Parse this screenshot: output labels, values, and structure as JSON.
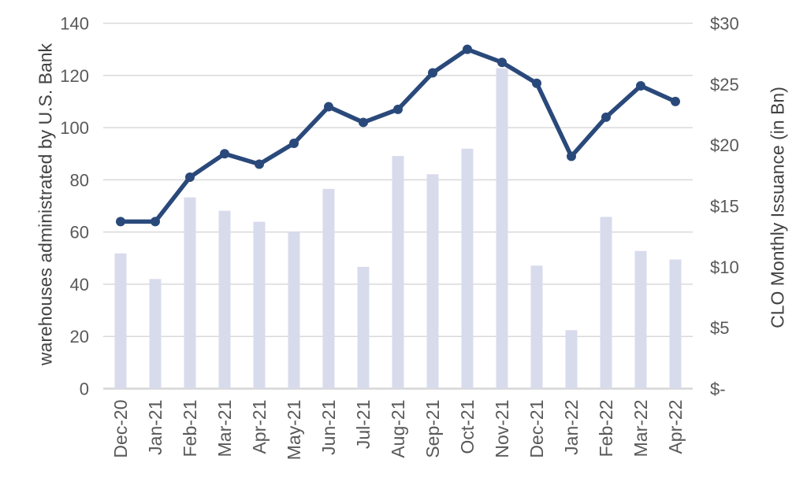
{
  "chart_data": {
    "type": "combo-bar-line",
    "title": "",
    "categories": [
      "Dec-20",
      "Jan-21",
      "Feb-21",
      "Mar-21",
      "Apr-21",
      "May-21",
      "Jun-21",
      "Jul-21",
      "Aug-21",
      "Sep-21",
      "Oct-21",
      "Nov-21",
      "Dec-21",
      "Jan-22",
      "Feb-22",
      "Mar-22",
      "Apr-22"
    ],
    "series": [
      {
        "name": "CLO Monthly Issuance (in Bn)",
        "type": "bar",
        "axis": "right",
        "values": [
          11.1,
          9.0,
          15.7,
          14.6,
          13.7,
          12.9,
          16.4,
          10.0,
          19.1,
          17.6,
          19.7,
          26.3,
          10.1,
          4.8,
          14.1,
          11.3,
          10.6
        ]
      },
      {
        "name": "warehouses administrated by U.S. Bank",
        "type": "line",
        "axis": "left",
        "values": [
          64,
          64,
          81,
          90,
          86,
          94,
          108,
          102,
          107,
          121,
          130,
          125,
          117,
          89,
          104,
          116,
          110
        ]
      }
    ],
    "left_axis": {
      "title": "warehouses administrated by U.S. Bank",
      "min": 0,
      "max": 140,
      "tick_step": 20,
      "tick_labels": [
        "0",
        "20",
        "40",
        "60",
        "80",
        "100",
        "120",
        "140"
      ]
    },
    "right_axis": {
      "title": "CLO Monthly Issuance (in Bn)",
      "min": 0,
      "max": 30,
      "tick_step": 5,
      "tick_labels": [
        "$-",
        "$5",
        "$10",
        "$15",
        "$20",
        "$25",
        "$30"
      ]
    },
    "grid": true,
    "legend": "none",
    "colors": {
      "bar": "#D8DBEC",
      "line": "#2A497B",
      "gridline": "#D9D9D9",
      "baseline": "#D6D6D6",
      "tick_text": "#595959",
      "axis_title_text": "#424242"
    }
  }
}
